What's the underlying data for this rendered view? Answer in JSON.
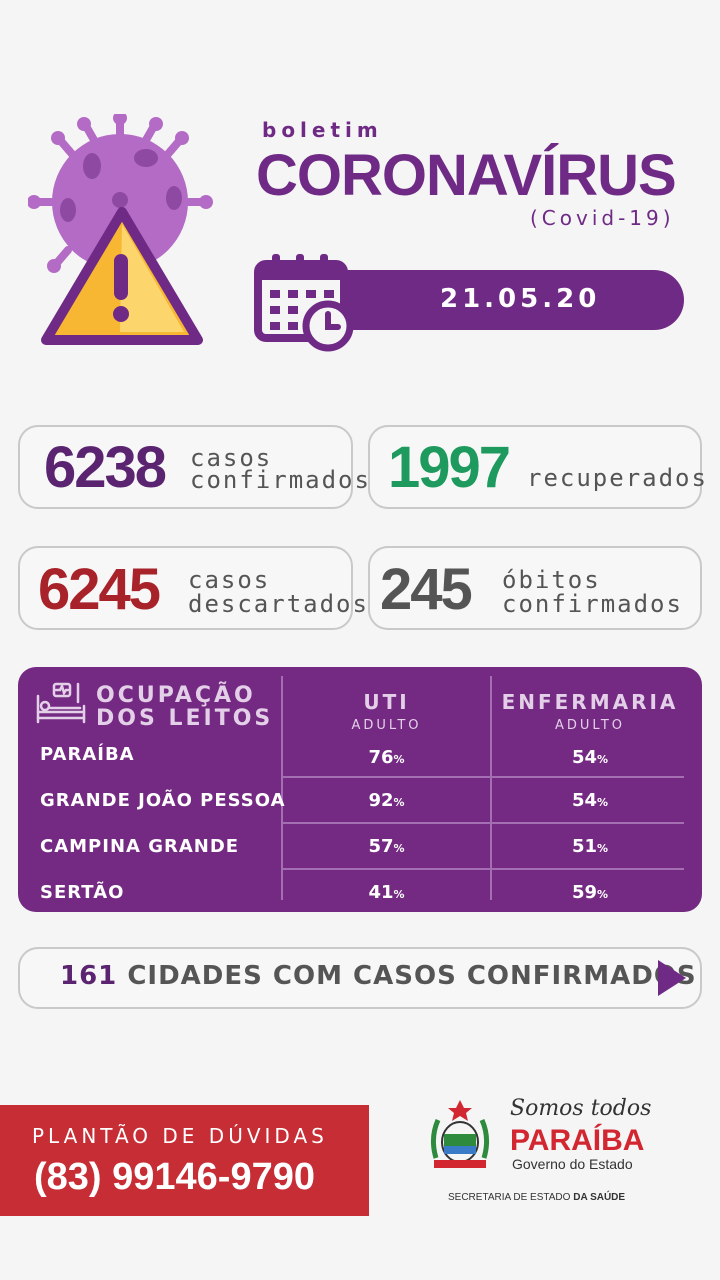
{
  "header": {
    "kicker": "boletim",
    "title": "CORONAVÍRUS",
    "subtitle": "(Covid-19)",
    "date": "21.05.20"
  },
  "stats": {
    "confirmed": {
      "value": "6238",
      "line1": "casos",
      "line2": "confirmados",
      "color": "#5a2470"
    },
    "recovered": {
      "value": "1997",
      "label": "recuperados",
      "color": "#1e9a5e"
    },
    "discarded": {
      "value": "6245",
      "line1": "casos",
      "line2": "descartados",
      "color": "#a8222a"
    },
    "deaths": {
      "value": "245",
      "line1": "óbitos",
      "line2": "confirmados",
      "color": "#555555"
    }
  },
  "beds": {
    "title_line1": "OCUPAÇÃO",
    "title_line2": "DOS LEITOS",
    "col1_title": "UTI",
    "col1_sub": "ADULTO",
    "col2_title": "ENFERMARIA",
    "col2_sub": "ADULTO",
    "pct_sign": "%",
    "rows": [
      {
        "name": "PARAÍBA",
        "uti": "76",
        "enf": "54"
      },
      {
        "name": "GRANDE JOÃO PESSOA",
        "uti": "92",
        "enf": "54"
      },
      {
        "name": "CAMPINA GRANDE",
        "uti": "57",
        "enf": "51"
      },
      {
        "name": "SERTÃO",
        "uti": "41",
        "enf": "59"
      }
    ]
  },
  "cities": {
    "count": "161",
    "label": "CIDADES COM CASOS CONFIRMADOS"
  },
  "footer": {
    "hotline_label": "PLANTÃO DE DÚVIDAS",
    "phone": "(83) 99146-9790",
    "slogan": "Somos todos",
    "state": "PARAÍBA",
    "government": "Governo do Estado",
    "secretaria_prefix": "SECRETARIA DE ESTADO ",
    "secretaria_bold": "DA SAÚDE"
  },
  "colors": {
    "purple": "#6f2a86",
    "red": "#c72d35",
    "green": "#1e9a5e"
  }
}
